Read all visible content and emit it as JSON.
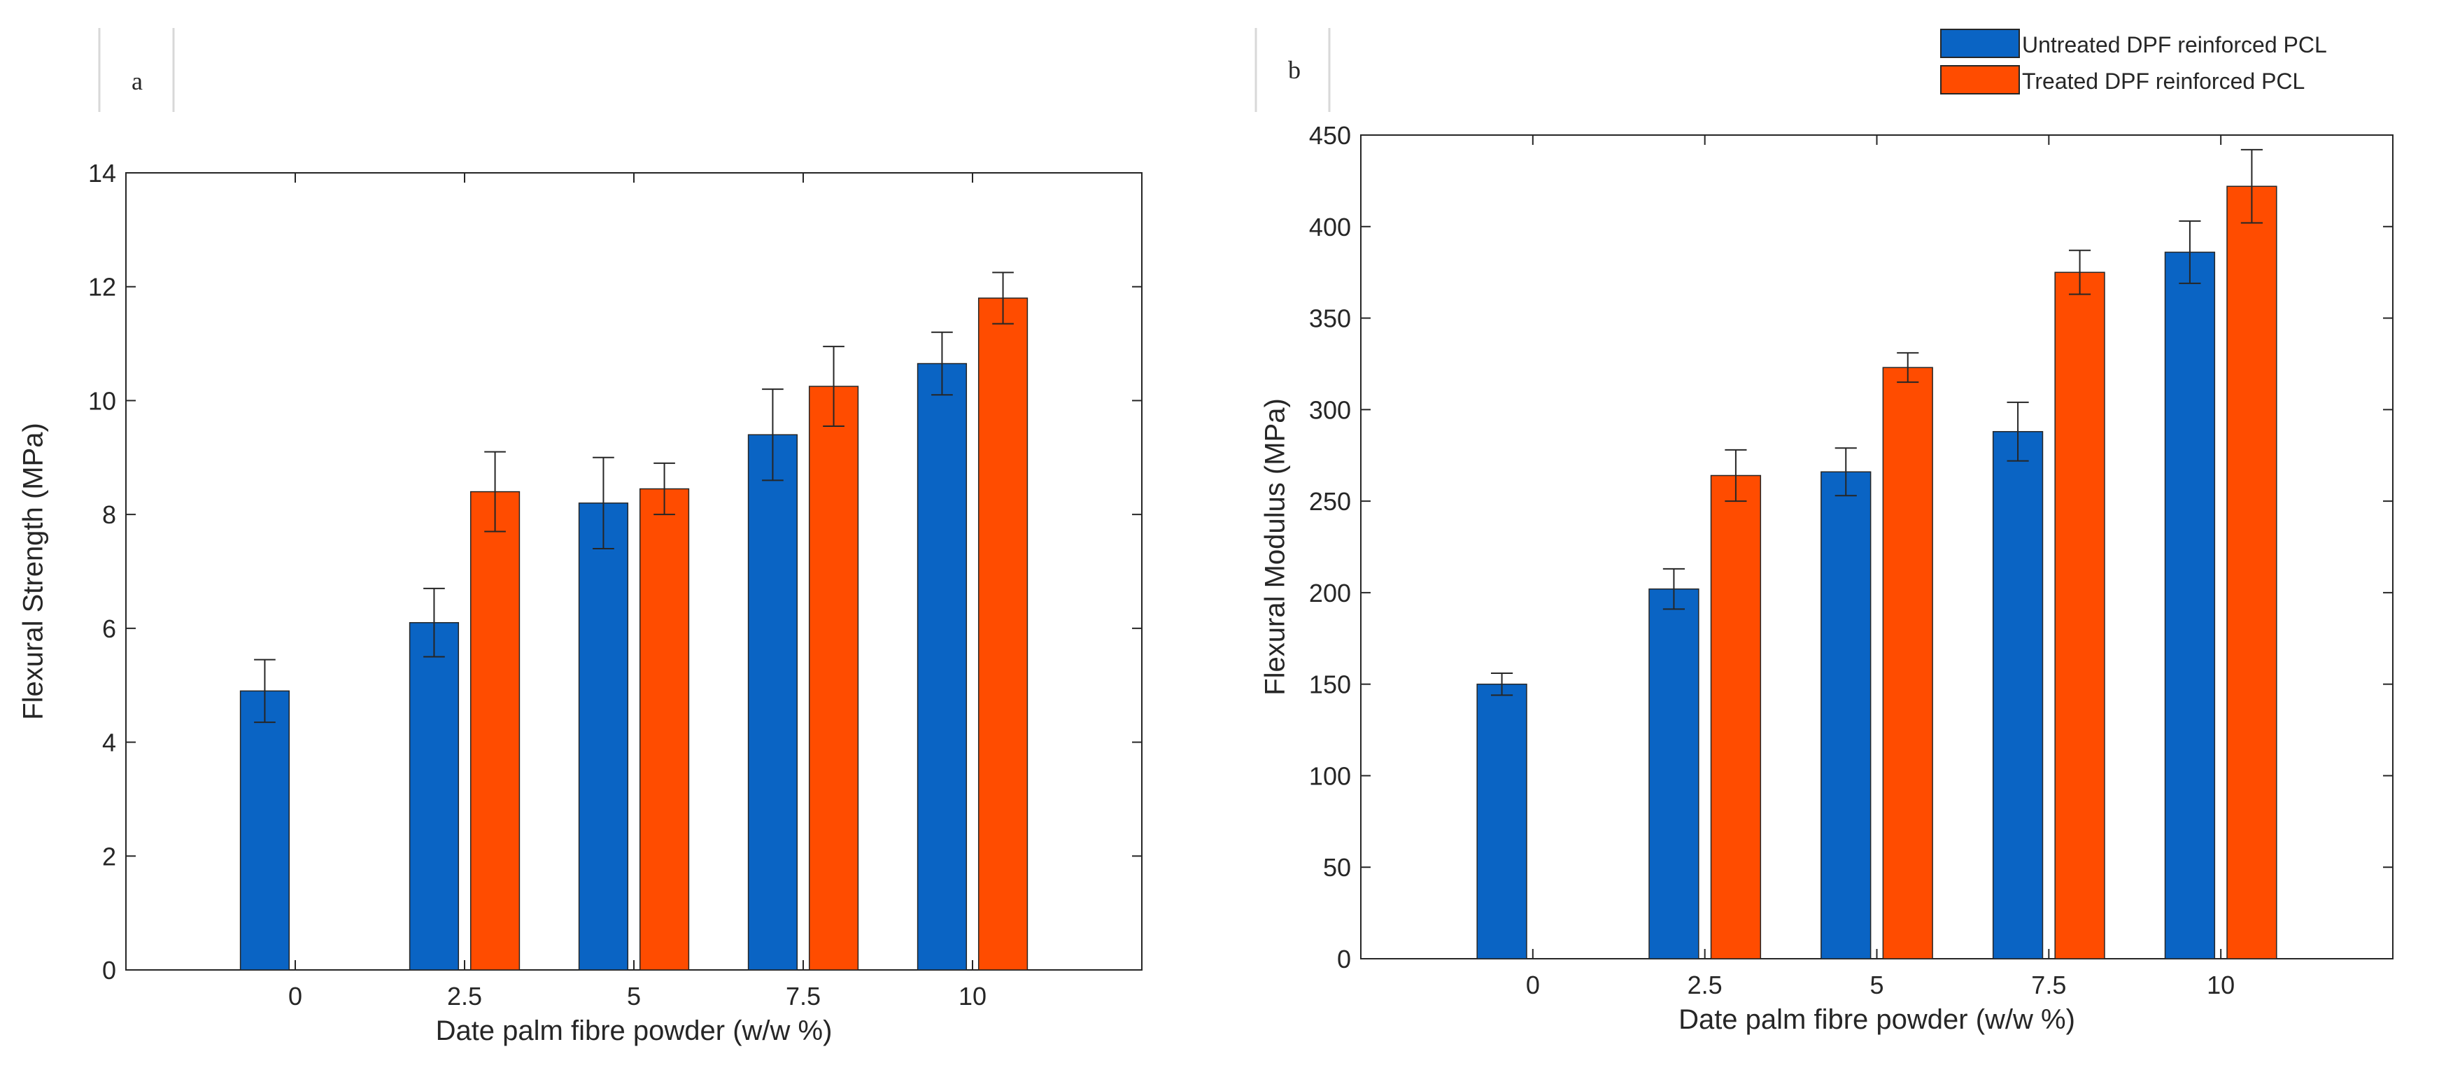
{
  "legend": {
    "untreated_label": "Untreated DPF reinforced PCL",
    "treated_label": "Treated DPF reinforced PCL"
  },
  "colors": {
    "untreated": "#0a64c4",
    "treated": "#ff4c00",
    "axis": "#262626"
  },
  "chart_data": [
    {
      "type": "bar",
      "panel": "a",
      "categories": [
        "0",
        "2.5",
        "5",
        "7.5",
        "10"
      ],
      "xlabel": "Date palm fibre powder (w/w %)",
      "ylabel": "Flexural Strength (MPa)",
      "ylim": [
        0,
        14
      ],
      "yticks": [
        0,
        2,
        4,
        6,
        8,
        10,
        12,
        14
      ],
      "series": [
        {
          "name": "Untreated DPF reinforced PCL",
          "values": [
            4.9,
            6.1,
            8.2,
            9.4,
            10.65
          ],
          "errors": [
            0.55,
            0.6,
            0.8,
            0.8,
            0.55
          ]
        },
        {
          "name": "Treated DPF reinforced PCL",
          "values": [
            0,
            8.4,
            8.45,
            10.25,
            11.8
          ],
          "errors": [
            0,
            0.7,
            0.45,
            0.7,
            0.45
          ]
        }
      ]
    },
    {
      "type": "bar",
      "panel": "b",
      "categories": [
        "0",
        "2.5",
        "5",
        "7.5",
        "10"
      ],
      "xlabel": "Date palm fibre powder (w/w %)",
      "ylabel": "Flexural Modulus (MPa)",
      "ylim": [
        0,
        450
      ],
      "yticks": [
        0,
        50,
        100,
        150,
        200,
        250,
        300,
        350,
        400,
        450
      ],
      "legend_position": "top-right",
      "series": [
        {
          "name": "Untreated DPF reinforced PCL",
          "values": [
            150,
            202,
            266,
            288,
            386
          ],
          "errors": [
            6,
            11,
            13,
            16,
            17
          ]
        },
        {
          "name": "Treated DPF reinforced PCL",
          "values": [
            0,
            264,
            323,
            375,
            422
          ],
          "errors": [
            0,
            14,
            8,
            12,
            20
          ]
        }
      ]
    }
  ]
}
